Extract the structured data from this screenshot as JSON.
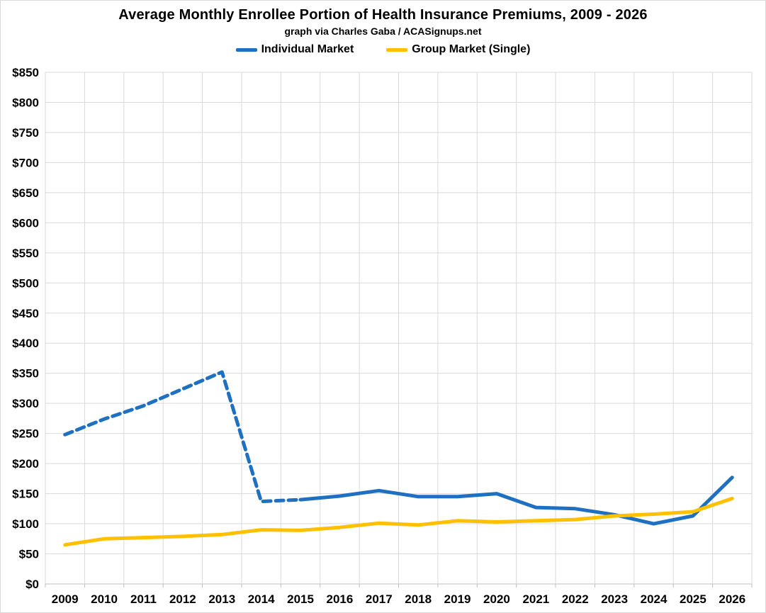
{
  "title": "Average Monthly Enrollee Portion of Health Insurance Premiums, 2009 - 2026",
  "subtitle": "graph via Charles Gaba / ACASignups.net",
  "colors": {
    "individual_blue": "#1F70C1",
    "group_gold": "#FFC000",
    "gridline": "#D9D9D9",
    "axis_line": "#BFBFBF",
    "text": "#000000",
    "background": "#FFFFFF"
  },
  "chart_data": {
    "type": "line",
    "title": "Average Monthly Enrollee Portion of Health Insurance Premiums, 2009 - 2026",
    "subtitle": "graph via Charles Gaba / ACASignups.net",
    "categories": [
      "2009",
      "2010",
      "2011",
      "2012",
      "2013",
      "2014",
      "2015",
      "2016",
      "2017",
      "2018",
      "2019",
      "2020",
      "2021",
      "2022",
      "2023",
      "2024",
      "2025",
      "2026"
    ],
    "series": [
      {
        "name": "Individual Market",
        "color": "#1F70C1",
        "line_style": "dashed through 2015 (estimated), solid 2015-2026",
        "dashed_through_index": 6,
        "values": [
          248,
          274,
          296,
          324,
          352,
          137,
          140,
          146,
          155,
          145,
          145,
          150,
          127,
          125,
          115,
          100,
          113,
          177
        ]
      },
      {
        "name": "Group Market (Single)",
        "color": "#FFC000",
        "line_style": "solid",
        "values": [
          65,
          75,
          77,
          79,
          82,
          90,
          89,
          94,
          101,
          98,
          105,
          103,
          105,
          107,
          113,
          116,
          120,
          142
        ]
      }
    ],
    "xlabel": "",
    "ylabel": "",
    "ylim": [
      0,
      850
    ],
    "ytick_step": 50,
    "ytick_prefix": "$",
    "grid": true,
    "legend_position": "top"
  }
}
